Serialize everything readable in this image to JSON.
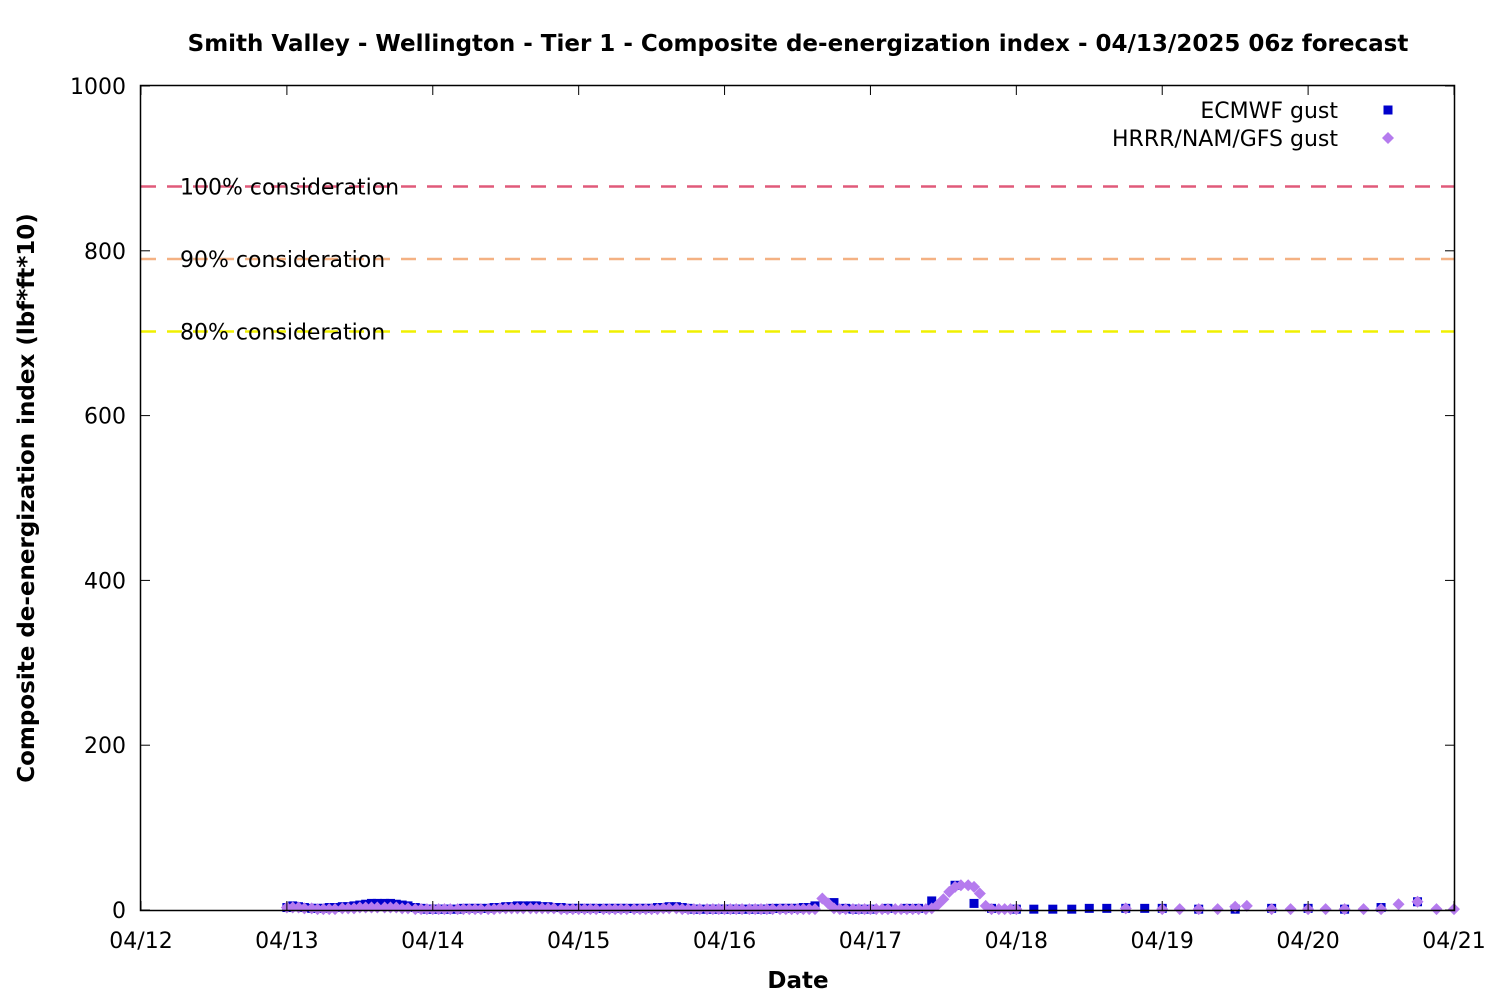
{
  "chart_data": {
    "type": "scatter",
    "title": "Smith Valley - Wellington - Tier 1 - Composite de-energization index - 04/13/2025 06z forecast",
    "xlabel": "Date",
    "ylabel": "Composite de-energization index (lbf*ft*10)",
    "x_unit": "days after 04/12 00z",
    "xlim": [
      0,
      9
    ],
    "ylim": [
      0,
      1000
    ],
    "x_ticks": [
      {
        "value": 0,
        "label": "04/12"
      },
      {
        "value": 1,
        "label": "04/13"
      },
      {
        "value": 2,
        "label": "04/14"
      },
      {
        "value": 3,
        "label": "04/15"
      },
      {
        "value": 4,
        "label": "04/16"
      },
      {
        "value": 5,
        "label": "04/17"
      },
      {
        "value": 6,
        "label": "04/18"
      },
      {
        "value": 7,
        "label": "04/19"
      },
      {
        "value": 8,
        "label": "04/20"
      },
      {
        "value": 9,
        "label": "04/21"
      }
    ],
    "y_ticks": [
      0,
      200,
      400,
      600,
      800,
      1000
    ],
    "grid": false,
    "legend_position": "top-right",
    "reference_lines": [
      {
        "label": "100% consideration",
        "value": 878,
        "color": "#e05a7a"
      },
      {
        "label": "90% consideration",
        "value": 790,
        "color": "#f4b183"
      },
      {
        "label": "80% consideration",
        "value": 702,
        "color": "#f0f000"
      }
    ],
    "series": [
      {
        "name": "ECMWF gust",
        "marker": "square",
        "color": "#0000cc",
        "points": [
          [
            1.0,
            3
          ],
          [
            1.04,
            5
          ],
          [
            1.08,
            4
          ],
          [
            1.12,
            3
          ],
          [
            1.17,
            2
          ],
          [
            1.21,
            2
          ],
          [
            1.25,
            2
          ],
          [
            1.29,
            3
          ],
          [
            1.33,
            3
          ],
          [
            1.38,
            4
          ],
          [
            1.42,
            4
          ],
          [
            1.46,
            5
          ],
          [
            1.5,
            6
          ],
          [
            1.54,
            7
          ],
          [
            1.58,
            8
          ],
          [
            1.62,
            8
          ],
          [
            1.67,
            8
          ],
          [
            1.71,
            8
          ],
          [
            1.75,
            7
          ],
          [
            1.79,
            6
          ],
          [
            1.83,
            5
          ],
          [
            1.88,
            3
          ],
          [
            1.92,
            2
          ],
          [
            1.96,
            1
          ],
          [
            2.0,
            1
          ],
          [
            2.04,
            1
          ],
          [
            2.08,
            1
          ],
          [
            2.12,
            1
          ],
          [
            2.17,
            1
          ],
          [
            2.21,
            2
          ],
          [
            2.25,
            2
          ],
          [
            2.29,
            2
          ],
          [
            2.33,
            2
          ],
          [
            2.38,
            2
          ],
          [
            2.42,
            3
          ],
          [
            2.46,
            3
          ],
          [
            2.5,
            4
          ],
          [
            2.54,
            4
          ],
          [
            2.58,
            5
          ],
          [
            2.62,
            5
          ],
          [
            2.67,
            5
          ],
          [
            2.71,
            5
          ],
          [
            2.75,
            4
          ],
          [
            2.79,
            4
          ],
          [
            2.83,
            3
          ],
          [
            2.88,
            3
          ],
          [
            2.92,
            2
          ],
          [
            2.96,
            2
          ],
          [
            3.0,
            2
          ],
          [
            3.04,
            2
          ],
          [
            3.08,
            2
          ],
          [
            3.12,
            2
          ],
          [
            3.17,
            2
          ],
          [
            3.21,
            2
          ],
          [
            3.25,
            2
          ],
          [
            3.29,
            2
          ],
          [
            3.33,
            2
          ],
          [
            3.38,
            2
          ],
          [
            3.42,
            2
          ],
          [
            3.46,
            2
          ],
          [
            3.5,
            2
          ],
          [
            3.54,
            3
          ],
          [
            3.58,
            3
          ],
          [
            3.62,
            4
          ],
          [
            3.67,
            4
          ],
          [
            3.71,
            3
          ],
          [
            3.75,
            2
          ],
          [
            3.79,
            1
          ],
          [
            3.83,
            1
          ],
          [
            3.88,
            1
          ],
          [
            3.92,
            1
          ],
          [
            3.96,
            1
          ],
          [
            4.0,
            1
          ],
          [
            4.04,
            1
          ],
          [
            4.08,
            1
          ],
          [
            4.12,
            1
          ],
          [
            4.17,
            1
          ],
          [
            4.21,
            1
          ],
          [
            4.25,
            1
          ],
          [
            4.29,
            1
          ],
          [
            4.33,
            2
          ],
          [
            4.38,
            2
          ],
          [
            4.42,
            2
          ],
          [
            4.46,
            2
          ],
          [
            4.5,
            2
          ],
          [
            4.54,
            3
          ],
          [
            4.58,
            3
          ],
          [
            4.62,
            5
          ],
          [
            4.75,
            9
          ],
          [
            4.83,
            2
          ],
          [
            4.88,
            1
          ],
          [
            4.92,
            1
          ],
          [
            5.0,
            1
          ],
          [
            5.12,
            2
          ],
          [
            5.25,
            2
          ],
          [
            5.33,
            2
          ],
          [
            5.42,
            11
          ],
          [
            5.58,
            30
          ],
          [
            5.71,
            8
          ],
          [
            5.83,
            2
          ],
          [
            6.0,
            1
          ],
          [
            6.12,
            1
          ],
          [
            6.25,
            1
          ],
          [
            6.38,
            1
          ],
          [
            6.5,
            2
          ],
          [
            6.62,
            2
          ],
          [
            6.75,
            2
          ],
          [
            6.88,
            2
          ],
          [
            7.0,
            2
          ],
          [
            7.25,
            1
          ],
          [
            7.5,
            1
          ],
          [
            7.75,
            2
          ],
          [
            8.0,
            2
          ],
          [
            8.25,
            1
          ],
          [
            8.5,
            3
          ],
          [
            8.75,
            10
          ]
        ]
      },
      {
        "name": "HRRR/NAM/GFS gust",
        "marker": "diamond",
        "color": "#b57bee",
        "points": [
          [
            1.0,
            3
          ],
          [
            1.04,
            3
          ],
          [
            1.08,
            3
          ],
          [
            1.12,
            2
          ],
          [
            1.17,
            2
          ],
          [
            1.21,
            1
          ],
          [
            1.25,
            1
          ],
          [
            1.29,
            1
          ],
          [
            1.33,
            1
          ],
          [
            1.38,
            2
          ],
          [
            1.42,
            2
          ],
          [
            1.46,
            2
          ],
          [
            1.5,
            3
          ],
          [
            1.54,
            3
          ],
          [
            1.58,
            3
          ],
          [
            1.62,
            3
          ],
          [
            1.67,
            3
          ],
          [
            1.71,
            3
          ],
          [
            1.75,
            3
          ],
          [
            1.79,
            2
          ],
          [
            1.83,
            2
          ],
          [
            1.88,
            1
          ],
          [
            1.92,
            1
          ],
          [
            1.96,
            1
          ],
          [
            2.0,
            1
          ],
          [
            2.04,
            1
          ],
          [
            2.08,
            1
          ],
          [
            2.12,
            1
          ],
          [
            2.17,
            1
          ],
          [
            2.21,
            1
          ],
          [
            2.25,
            1
          ],
          [
            2.29,
            1
          ],
          [
            2.33,
            1
          ],
          [
            2.38,
            1
          ],
          [
            2.42,
            1
          ],
          [
            2.46,
            2
          ],
          [
            2.5,
            2
          ],
          [
            2.54,
            2
          ],
          [
            2.58,
            2
          ],
          [
            2.62,
            2
          ],
          [
            2.67,
            2
          ],
          [
            2.71,
            2
          ],
          [
            2.75,
            2
          ],
          [
            2.79,
            2
          ],
          [
            2.83,
            2
          ],
          [
            2.88,
            1
          ],
          [
            2.92,
            1
          ],
          [
            2.96,
            1
          ],
          [
            3.0,
            1
          ],
          [
            3.04,
            1
          ],
          [
            3.08,
            1
          ],
          [
            3.12,
            1
          ],
          [
            3.17,
            1
          ],
          [
            3.21,
            1
          ],
          [
            3.25,
            1
          ],
          [
            3.29,
            1
          ],
          [
            3.33,
            1
          ],
          [
            3.38,
            1
          ],
          [
            3.42,
            1
          ],
          [
            3.46,
            1
          ],
          [
            3.5,
            1
          ],
          [
            3.54,
            1
          ],
          [
            3.58,
            2
          ],
          [
            3.62,
            2
          ],
          [
            3.67,
            2
          ],
          [
            3.71,
            1
          ],
          [
            3.75,
            1
          ],
          [
            3.79,
            1
          ],
          [
            3.83,
            1
          ],
          [
            3.88,
            1
          ],
          [
            3.92,
            1
          ],
          [
            3.96,
            1
          ],
          [
            4.0,
            1
          ],
          [
            4.04,
            1
          ],
          [
            4.08,
            1
          ],
          [
            4.12,
            1
          ],
          [
            4.17,
            1
          ],
          [
            4.21,
            1
          ],
          [
            4.25,
            1
          ],
          [
            4.29,
            1
          ],
          [
            4.33,
            1
          ],
          [
            4.38,
            1
          ],
          [
            4.42,
            1
          ],
          [
            4.46,
            1
          ],
          [
            4.5,
            1
          ],
          [
            4.54,
            1
          ],
          [
            4.58,
            1
          ],
          [
            4.62,
            1
          ],
          [
            4.67,
            14
          ],
          [
            4.71,
            8
          ],
          [
            4.75,
            2
          ],
          [
            4.79,
            1
          ],
          [
            4.83,
            1
          ],
          [
            4.88,
            1
          ],
          [
            4.92,
            1
          ],
          [
            4.96,
            1
          ],
          [
            5.0,
            1
          ],
          [
            5.04,
            1
          ],
          [
            5.08,
            1
          ],
          [
            5.12,
            1
          ],
          [
            5.17,
            1
          ],
          [
            5.21,
            1
          ],
          [
            5.25,
            1
          ],
          [
            5.29,
            1
          ],
          [
            5.33,
            1
          ],
          [
            5.38,
            1
          ],
          [
            5.42,
            2
          ],
          [
            5.46,
            6
          ],
          [
            5.5,
            13
          ],
          [
            5.54,
            22
          ],
          [
            5.58,
            28
          ],
          [
            5.62,
            30
          ],
          [
            5.67,
            30
          ],
          [
            5.71,
            28
          ],
          [
            5.75,
            20
          ],
          [
            5.79,
            5
          ],
          [
            5.83,
            1
          ],
          [
            5.88,
            1
          ],
          [
            5.92,
            1
          ],
          [
            5.96,
            1
          ],
          [
            6.0,
            1
          ],
          [
            6.75,
            2
          ],
          [
            7.0,
            1
          ],
          [
            7.12,
            1
          ],
          [
            7.25,
            1
          ],
          [
            7.38,
            1
          ],
          [
            7.5,
            4
          ],
          [
            7.58,
            5
          ],
          [
            7.75,
            1
          ],
          [
            7.88,
            1
          ],
          [
            8.0,
            1
          ],
          [
            8.12,
            1
          ],
          [
            8.25,
            1
          ],
          [
            8.38,
            1
          ],
          [
            8.5,
            1
          ],
          [
            8.62,
            7
          ],
          [
            8.75,
            10
          ],
          [
            8.88,
            1
          ],
          [
            9.0,
            1
          ]
        ]
      }
    ]
  }
}
